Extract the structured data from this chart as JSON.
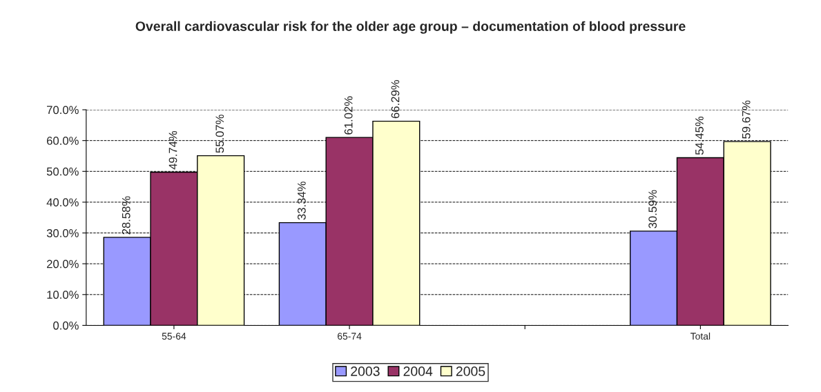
{
  "chart_data": {
    "type": "bar",
    "title": "Overall cardiovascular risk for the older age group – documentation of blood pressure",
    "categories": [
      "55-64",
      "65-74",
      null,
      "Total"
    ],
    "series": [
      {
        "name": "2003",
        "color": "#9999ff",
        "values": [
          28.58,
          33.34,
          null,
          30.59
        ],
        "value_labels": [
          "28.58%",
          "33.34%",
          null,
          "30.59%"
        ]
      },
      {
        "name": "2004",
        "color": "#993366",
        "values": [
          49.74,
          61.02,
          null,
          54.45
        ],
        "value_labels": [
          "49.74%",
          "61.02%",
          null,
          "54.45%"
        ]
      },
      {
        "name": "2005",
        "color": "#ffffcc",
        "values": [
          55.07,
          66.29,
          null,
          59.67
        ],
        "value_labels": [
          "55.07%",
          "66.29%",
          null,
          "59.67%"
        ]
      }
    ],
    "ylim": [
      0,
      70
    ],
    "yticks": [
      {
        "value": 0,
        "label": "0.0%"
      },
      {
        "value": 10,
        "label": "10.0%"
      },
      {
        "value": 20,
        "label": "20.0%"
      },
      {
        "value": 30,
        "label": "30.0%"
      },
      {
        "value": 40,
        "label": "40.0%"
      },
      {
        "value": 50,
        "label": "50.0%"
      },
      {
        "value": 60,
        "label": "60.0%"
      },
      {
        "value": 70,
        "label": "70.0%"
      }
    ],
    "grid": "y",
    "legend": "bottom"
  }
}
